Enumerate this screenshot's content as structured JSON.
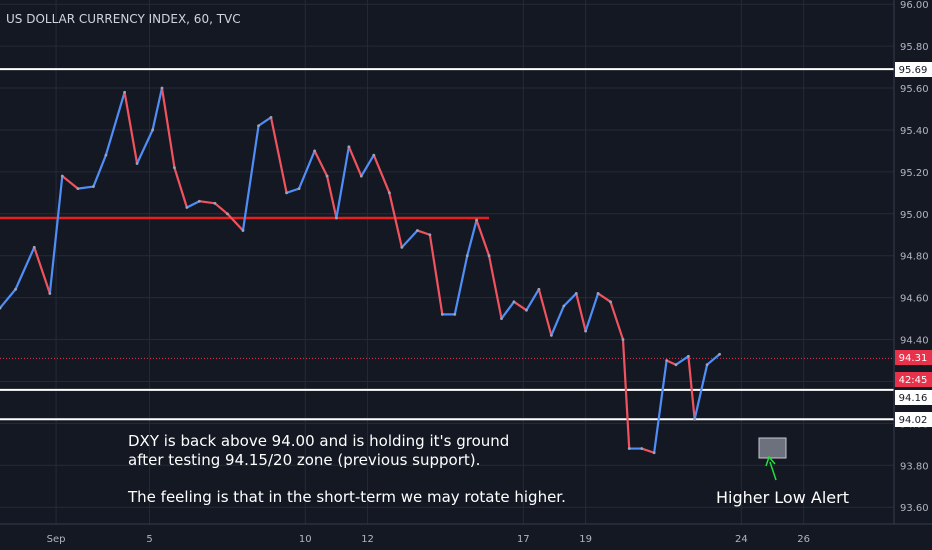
{
  "header": {
    "title": "US DOLLAR CURRENCY INDEX, 60, TVC"
  },
  "colors": {
    "background": "#141823",
    "grid": "#252a37",
    "bull": "#4f8ef7",
    "bear": "#f0535e",
    "resistance": "#e81f1f",
    "level": "#ffffff",
    "current": "#e8314b",
    "countdown": "#e8314b",
    "box": "#8a8f9c",
    "arrow": "#22e03a",
    "axis_text": "#b2b5be"
  },
  "annotations": {
    "note_line1": "DXY is back above 94.00 and is holding it's ground",
    "note_line2": "after testing 94.15/20 zone (previous support).",
    "note_line3": "The feeling is that in the short-term we may rotate higher.",
    "higher_low": "Higher Low Alert"
  },
  "badges": {
    "level_high": "95.69",
    "current_price": "94.31",
    "countdown": "42:45",
    "level_mid": "94.16",
    "level_low": "94.02"
  },
  "chart_data": {
    "type": "line",
    "title": "US DOLLAR CURRENCY INDEX, 60, TVC",
    "xlabel": "",
    "ylabel": "",
    "ylim": [
      93.52,
      96.02
    ],
    "y_ticks": [
      "96.00",
      "95.80",
      "95.60",
      "95.40",
      "95.20",
      "95.00",
      "94.80",
      "94.60",
      "94.40",
      "94.20",
      "94.00",
      "93.80",
      "93.60"
    ],
    "x_ticks": [
      "Sep",
      "5",
      "10",
      "12",
      "17",
      "19",
      "24",
      "26"
    ],
    "x_tick_values": [
      2.0,
      5.0,
      10.0,
      12.0,
      17.0,
      19.0,
      24.0,
      26.0
    ],
    "x_range": [
      0.2,
      28.9
    ],
    "grid": true,
    "levels": [
      {
        "name": "horizontal level",
        "value": 95.69,
        "x_from": 0.2
      },
      {
        "name": "resistance line",
        "value": 94.98,
        "x_from": 0.2,
        "x_to": 15.9
      },
      {
        "name": "support level",
        "value": 94.16,
        "x_from": 0.2
      },
      {
        "name": "support level",
        "value": 94.02,
        "x_from": 0.2
      }
    ],
    "current_price": 94.31,
    "series": [
      {
        "values": [
          [
            0.2,
            94.55
          ],
          [
            0.7,
            94.64
          ],
          [
            1.3,
            94.84
          ],
          [
            1.8,
            94.62
          ],
          [
            2.2,
            95.18
          ],
          [
            2.7,
            95.12
          ],
          [
            3.2,
            95.13
          ],
          [
            3.6,
            95.28
          ],
          [
            4.2,
            95.58
          ],
          [
            4.6,
            95.24
          ],
          [
            5.1,
            95.4
          ],
          [
            5.4,
            95.6
          ],
          [
            5.8,
            95.22
          ],
          [
            6.2,
            95.03
          ],
          [
            6.6,
            95.06
          ],
          [
            7.1,
            95.05
          ],
          [
            7.5,
            95.0
          ],
          [
            8.0,
            94.92
          ],
          [
            8.5,
            95.42
          ],
          [
            8.9,
            95.46
          ],
          [
            9.4,
            95.1
          ],
          [
            9.8,
            95.12
          ],
          [
            10.3,
            95.3
          ],
          [
            10.7,
            95.18
          ],
          [
            11.0,
            94.98
          ],
          [
            11.4,
            95.32
          ],
          [
            11.8,
            95.18
          ],
          [
            12.2,
            95.28
          ],
          [
            12.7,
            95.1
          ],
          [
            13.1,
            94.84
          ],
          [
            13.6,
            94.92
          ],
          [
            14.0,
            94.9
          ],
          [
            14.4,
            94.52
          ],
          [
            14.8,
            94.52
          ],
          [
            15.2,
            94.8
          ],
          [
            15.5,
            94.97
          ],
          [
            15.9,
            94.8
          ],
          [
            16.3,
            94.5
          ],
          [
            16.7,
            94.58
          ],
          [
            17.1,
            94.54
          ],
          [
            17.5,
            94.64
          ],
          [
            17.9,
            94.42
          ],
          [
            18.3,
            94.56
          ],
          [
            18.7,
            94.62
          ],
          [
            19.0,
            94.44
          ],
          [
            19.4,
            94.62
          ],
          [
            19.8,
            94.58
          ],
          [
            20.2,
            94.4
          ],
          [
            20.4,
            93.88
          ],
          [
            20.8,
            93.88
          ],
          [
            21.2,
            93.86
          ],
          [
            21.6,
            94.3
          ],
          [
            21.9,
            94.28
          ],
          [
            22.3,
            94.32
          ],
          [
            22.5,
            94.02
          ],
          [
            22.9,
            94.28
          ],
          [
            23.3,
            94.33
          ]
        ]
      }
    ]
  }
}
